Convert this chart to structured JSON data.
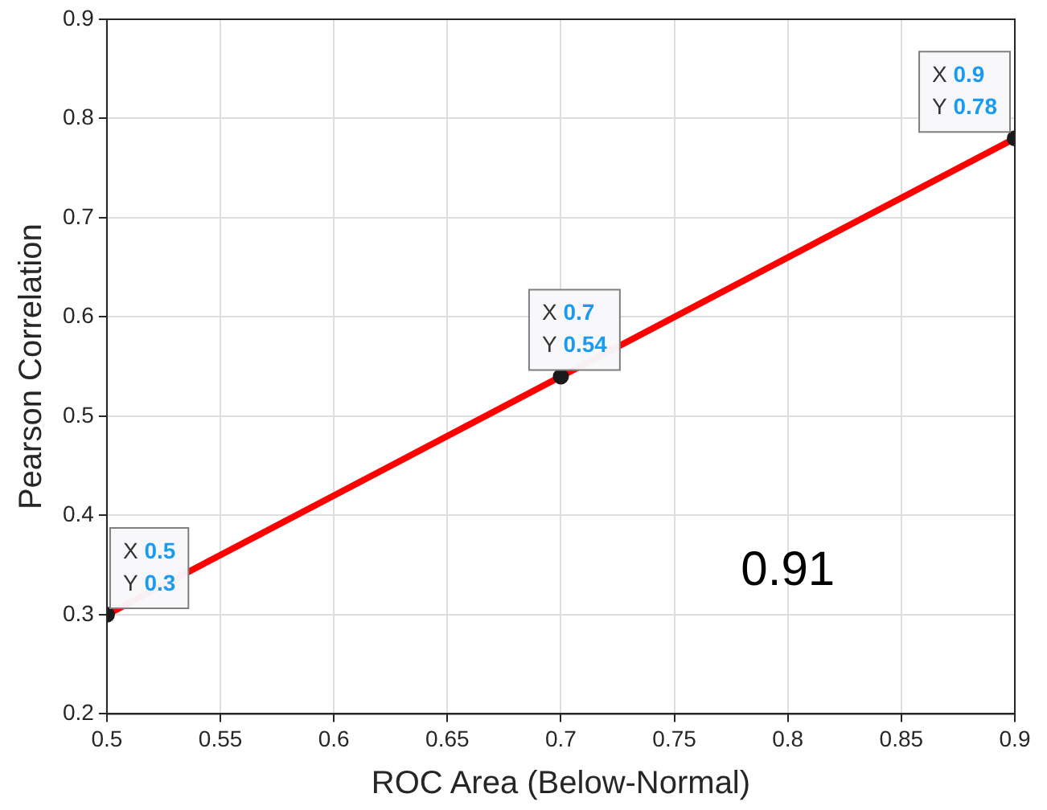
{
  "chart_data": {
    "type": "line",
    "xlabel": "ROC Area (Below-Normal)",
    "ylabel": "Pearson Correlation",
    "x": [
      0.5,
      0.7,
      0.9
    ],
    "series": [
      {
        "color": "#ff0000",
        "values": [
          0.3,
          0.54,
          0.78
        ]
      }
    ],
    "xlim": [
      0.5,
      0.9
    ],
    "xticks": [
      0.5,
      0.55,
      0.6,
      0.65,
      0.7,
      0.75,
      0.8,
      0.85,
      0.9
    ],
    "ylim": [
      0.2,
      0.9
    ],
    "yticks": [
      0.2,
      0.3,
      0.4,
      0.5,
      0.6,
      0.7,
      0.8,
      0.9
    ],
    "grid": true,
    "marker": "circle",
    "line_style": "solid",
    "annotations": [
      {
        "text": "X 0.5\nY 0.3",
        "x": 0.5,
        "y": 0.3
      },
      {
        "text": "X 0.7\nY 0.54",
        "x": 0.7,
        "y": 0.54
      },
      {
        "text": "X 0.9\nY 0.78",
        "x": 0.9,
        "y": 0.78
      },
      "0.91"
    ]
  }
}
